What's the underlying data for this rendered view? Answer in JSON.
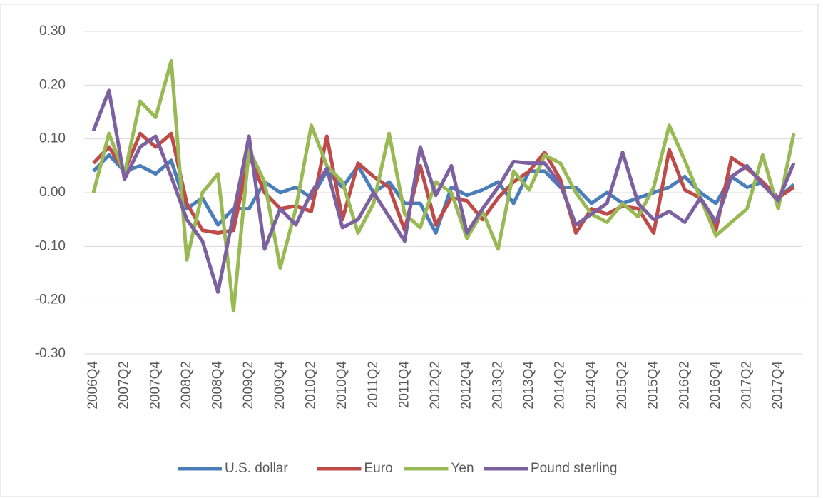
{
  "chart_data": {
    "type": "line",
    "categories": [
      "2006Q4",
      null,
      "2007Q2",
      null,
      "2007Q4",
      null,
      "2008Q2",
      null,
      "2008Q4",
      null,
      "2009Q2",
      null,
      "2009Q4",
      null,
      "2010Q2",
      null,
      "2010Q4",
      null,
      "2011Q2",
      null,
      "2011Q4",
      null,
      "2012Q2",
      null,
      "2012Q4",
      null,
      "2013Q2",
      null,
      "2013Q4",
      null,
      "2014Q2",
      null,
      "2014Q4",
      null,
      "2015Q2",
      null,
      "2015Q4",
      null,
      "2016Q2",
      null,
      "2016Q4",
      null,
      "2017Q2",
      null,
      "2017Q4",
      null
    ],
    "series": [
      {
        "name": "U.S. dollar",
        "color": "#4a7ebb",
        "values": [
          0.04,
          0.07,
          0.04,
          0.05,
          0.035,
          0.06,
          -0.03,
          -0.01,
          -0.06,
          -0.03,
          -0.03,
          0.02,
          0.0,
          0.01,
          -0.01,
          0.04,
          0.01,
          0.05,
          0.0,
          0.02,
          -0.02,
          -0.02,
          -0.075,
          0.01,
          -0.005,
          0.005,
          0.02,
          -0.02,
          0.04,
          0.04,
          0.01,
          0.01,
          -0.02,
          0.0,
          -0.02,
          -0.01,
          0.0,
          0.01,
          0.03,
          0.0,
          -0.02,
          0.03,
          0.01,
          0.02,
          -0.01,
          0.015
        ]
      },
      {
        "name": "Euro",
        "color": "#be4b48",
        "values": [
          0.055,
          0.085,
          0.04,
          0.11,
          0.085,
          0.11,
          -0.02,
          -0.07,
          -0.075,
          -0.07,
          0.07,
          0.0,
          -0.03,
          -0.025,
          -0.035,
          0.105,
          -0.05,
          0.055,
          0.03,
          0.01,
          -0.07,
          0.05,
          -0.06,
          -0.01,
          -0.015,
          -0.05,
          -0.01,
          0.02,
          0.04,
          0.075,
          0.025,
          -0.075,
          -0.03,
          -0.04,
          -0.025,
          -0.03,
          -0.075,
          0.08,
          0.005,
          -0.01,
          -0.07,
          0.065,
          0.045,
          0.02,
          -0.01,
          0.01
        ]
      },
      {
        "name": "Yen",
        "color": "#98b954",
        "values": [
          0.0,
          0.11,
          0.035,
          0.17,
          0.14,
          0.245,
          -0.125,
          0.0,
          0.035,
          -0.22,
          0.08,
          0.02,
          -0.14,
          -0.03,
          0.125,
          0.05,
          0.02,
          -0.075,
          -0.02,
          0.11,
          -0.04,
          -0.065,
          0.02,
          0.0,
          -0.085,
          -0.035,
          -0.105,
          0.04,
          0.005,
          0.07,
          0.055,
          0.0,
          -0.04,
          -0.055,
          -0.02,
          -0.045,
          0.01,
          0.125,
          0.06,
          -0.01,
          -0.08,
          -0.055,
          -0.03,
          0.07,
          -0.03,
          0.11
        ]
      },
      {
        "name": "Pound sterling",
        "color": "#7d60a0",
        "values": [
          0.115,
          0.19,
          0.025,
          0.085,
          0.105,
          0.03,
          -0.05,
          -0.09,
          -0.185,
          -0.04,
          0.105,
          -0.105,
          -0.03,
          -0.06,
          0.0,
          0.045,
          -0.065,
          -0.05,
          0.0,
          -0.045,
          -0.09,
          0.085,
          -0.005,
          0.05,
          -0.075,
          -0.03,
          0.01,
          0.058,
          0.055,
          0.055,
          0.015,
          -0.06,
          -0.04,
          -0.02,
          0.075,
          -0.02,
          -0.05,
          -0.035,
          -0.055,
          -0.01,
          -0.055,
          0.03,
          0.05,
          0.015,
          -0.015,
          0.055
        ]
      }
    ],
    "ylim": [
      -0.3,
      0.3
    ],
    "yticks": [
      {
        "value": 0.3,
        "label": "0.30"
      },
      {
        "value": 0.2,
        "label": "0.20"
      },
      {
        "value": 0.1,
        "label": "0.10"
      },
      {
        "value": 0,
        "label": "0.00"
      },
      {
        "value": -0.1,
        "label": "-0.10"
      },
      {
        "value": -0.2,
        "label": "-0.20"
      },
      {
        "value": -0.3,
        "label": "-0.30"
      }
    ],
    "grid": true,
    "legend": "bottom"
  }
}
